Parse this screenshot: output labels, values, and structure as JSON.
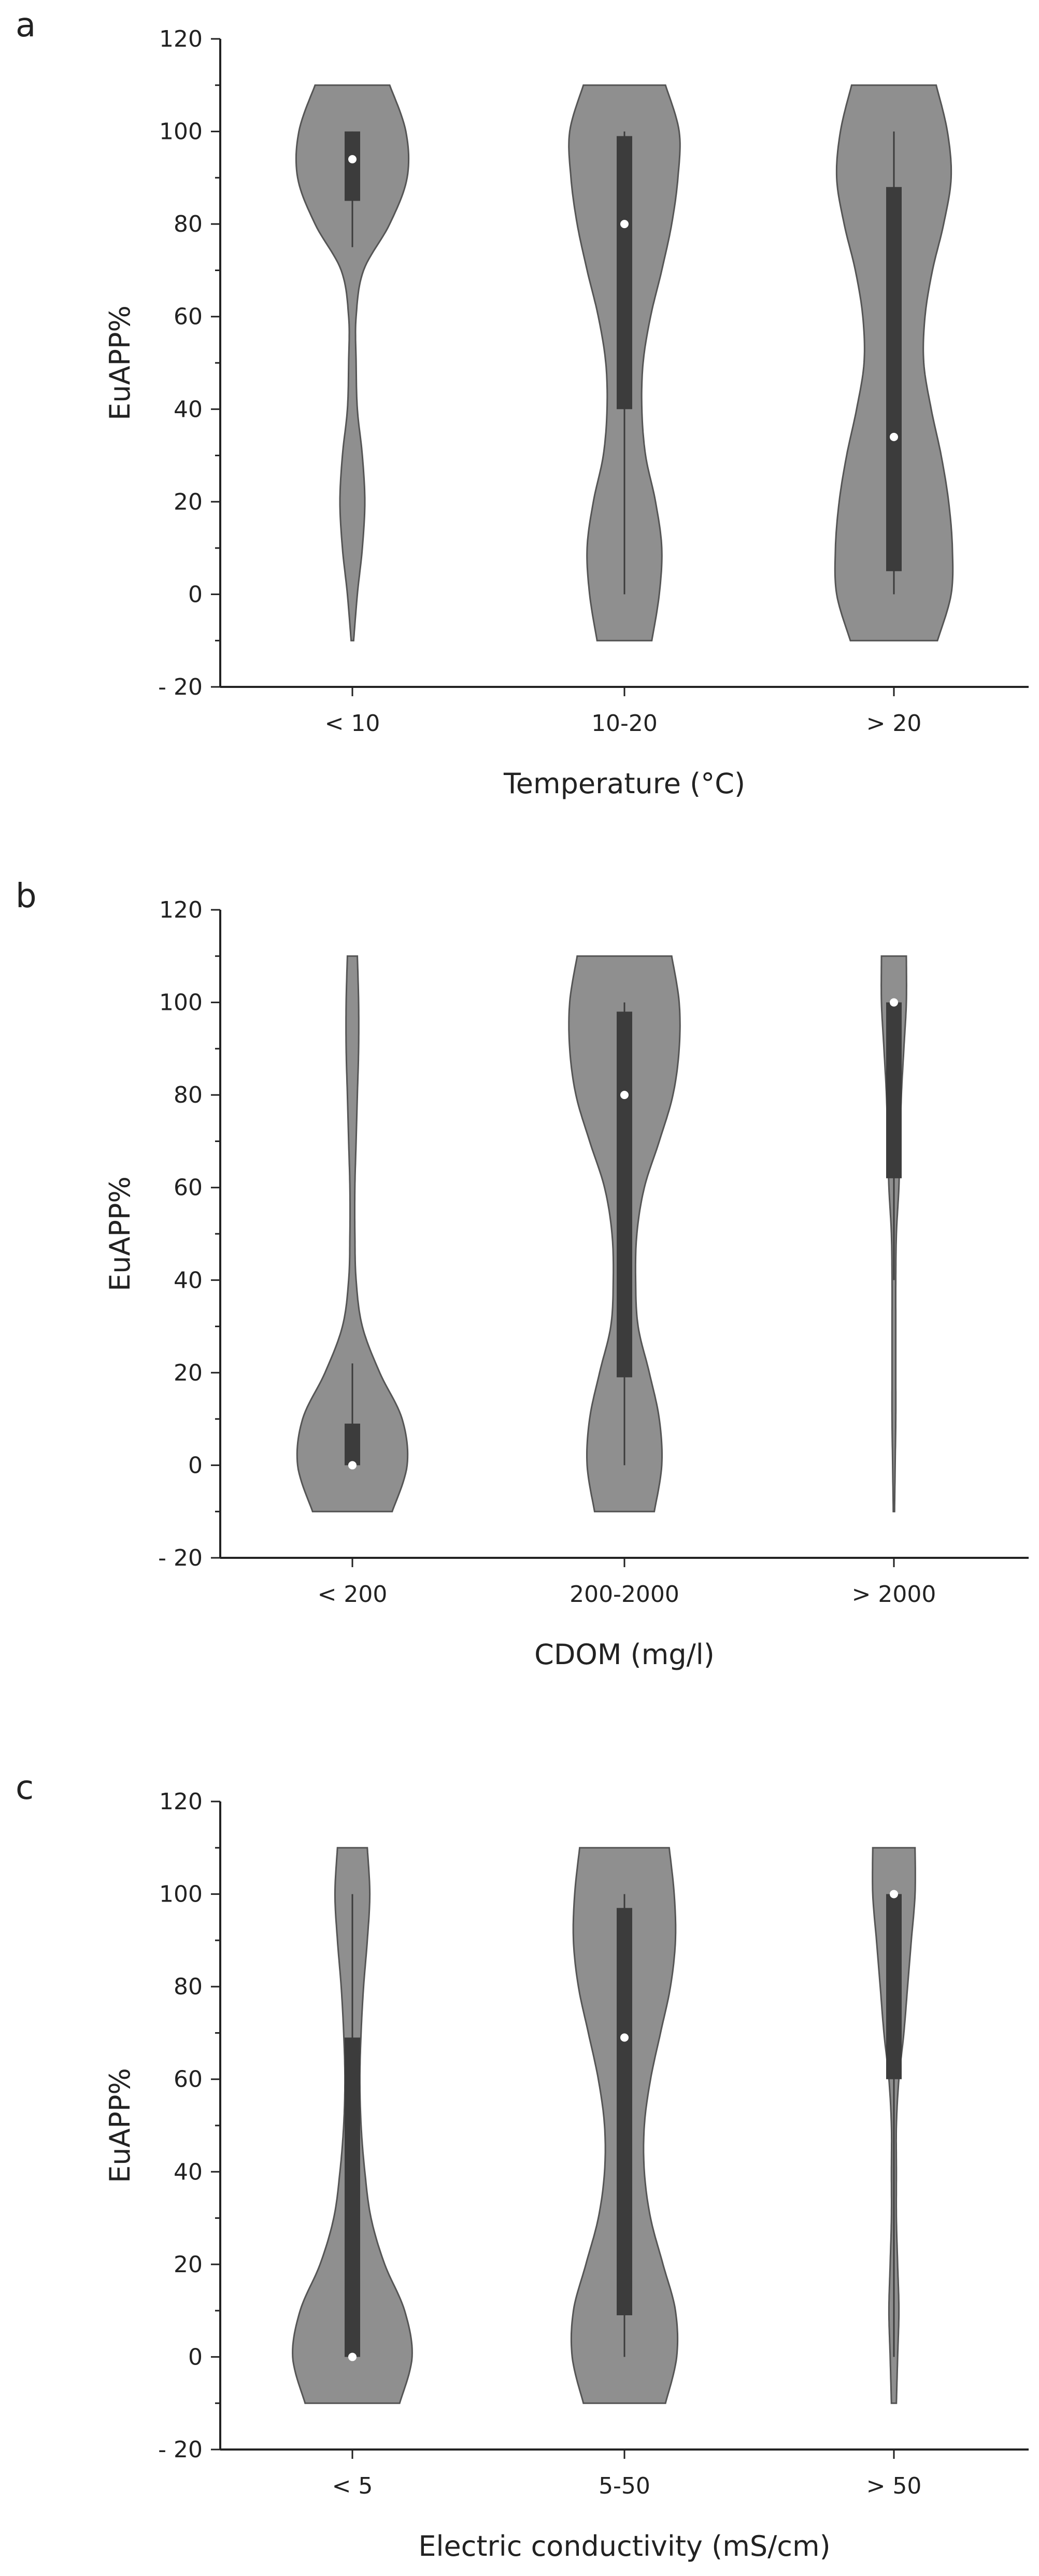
{
  "chart_data": [
    {
      "type": "violin",
      "panel_label": "a",
      "ylabel": "EuAPP%",
      "xlabel": "Temperature (°C)",
      "ylim": [
        -20,
        120
      ],
      "y_ticks": [
        "120",
        "100",
        "80",
        "60",
        "40",
        "20",
        "0",
        "- 20"
      ],
      "categories": [
        "< 10",
        "10-20",
        "> 20"
      ],
      "groups": [
        {
          "category": "< 10",
          "median": 94,
          "q1": 85,
          "q3": 100,
          "whisker_low": 75,
          "whisker_high": 100,
          "density": [
            [
              -10,
              0.01
            ],
            [
              0,
              0.04
            ],
            [
              10,
              0.08
            ],
            [
              20,
              0.1
            ],
            [
              30,
              0.08
            ],
            [
              40,
              0.04
            ],
            [
              50,
              0.03
            ],
            [
              60,
              0.03
            ],
            [
              70,
              0.09
            ],
            [
              80,
              0.3
            ],
            [
              90,
              0.44
            ],
            [
              100,
              0.43
            ],
            [
              110,
              0.3
            ]
          ]
        },
        {
          "category": "10-20",
          "median": 80,
          "q1": 40,
          "q3": 99,
          "whisker_low": 0,
          "whisker_high": 100,
          "density": [
            [
              -10,
              0.22
            ],
            [
              0,
              0.28
            ],
            [
              10,
              0.3
            ],
            [
              20,
              0.25
            ],
            [
              30,
              0.17
            ],
            [
              40,
              0.14
            ],
            [
              50,
              0.15
            ],
            [
              60,
              0.21
            ],
            [
              70,
              0.3
            ],
            [
              80,
              0.38
            ],
            [
              90,
              0.43
            ],
            [
              100,
              0.44
            ],
            [
              110,
              0.33
            ]
          ]
        },
        {
          "category": "> 20",
          "median": 34,
          "q1": 5,
          "q3": 88,
          "whisker_low": 0,
          "whisker_high": 100,
          "density": [
            [
              -10,
              0.35
            ],
            [
              0,
              0.46
            ],
            [
              10,
              0.47
            ],
            [
              20,
              0.44
            ],
            [
              30,
              0.38
            ],
            [
              40,
              0.3
            ],
            [
              50,
              0.24
            ],
            [
              60,
              0.25
            ],
            [
              70,
              0.31
            ],
            [
              80,
              0.4
            ],
            [
              90,
              0.46
            ],
            [
              100,
              0.43
            ],
            [
              110,
              0.34
            ]
          ]
        }
      ]
    },
    {
      "type": "violin",
      "panel_label": "b",
      "ylabel": "EuAPP%",
      "xlabel": "CDOM (mg/l)",
      "ylim": [
        -20,
        120
      ],
      "y_ticks": [
        "120",
        "100",
        "80",
        "60",
        "40",
        "20",
        "0",
        "- 20"
      ],
      "categories": [
        "< 200",
        "200-2000",
        "> 2000"
      ],
      "groups": [
        {
          "category": "< 200",
          "median": 0,
          "q1": 0,
          "q3": 9,
          "whisker_low": 0,
          "whisker_high": 22,
          "density": [
            [
              -10,
              0.32
            ],
            [
              0,
              0.44
            ],
            [
              10,
              0.4
            ],
            [
              20,
              0.22
            ],
            [
              30,
              0.08
            ],
            [
              40,
              0.03
            ],
            [
              50,
              0.02
            ],
            [
              60,
              0.02
            ],
            [
              70,
              0.03
            ],
            [
              80,
              0.04
            ],
            [
              90,
              0.05
            ],
            [
              100,
              0.05
            ],
            [
              110,
              0.04
            ]
          ]
        },
        {
          "category": "200-2000",
          "median": 80,
          "q1": 19,
          "q3": 98,
          "whisker_low": 0,
          "whisker_high": 100,
          "density": [
            [
              -10,
              0.24
            ],
            [
              0,
              0.3
            ],
            [
              10,
              0.28
            ],
            [
              20,
              0.2
            ],
            [
              30,
              0.11
            ],
            [
              40,
              0.09
            ],
            [
              50,
              0.1
            ],
            [
              60,
              0.16
            ],
            [
              70,
              0.28
            ],
            [
              80,
              0.39
            ],
            [
              90,
              0.44
            ],
            [
              100,
              0.44
            ],
            [
              110,
              0.38
            ]
          ]
        },
        {
          "category": "> 2000",
          "median": 100,
          "q1": 62,
          "q3": 100,
          "whisker_low": 40,
          "whisker_high": 100,
          "density": [
            [
              -10,
              0.005
            ],
            [
              0,
              0.01
            ],
            [
              10,
              0.015
            ],
            [
              20,
              0.015
            ],
            [
              30,
              0.015
            ],
            [
              40,
              0.015
            ],
            [
              50,
              0.02
            ],
            [
              60,
              0.04
            ],
            [
              70,
              0.05
            ],
            [
              80,
              0.06
            ],
            [
              90,
              0.08
            ],
            [
              100,
              0.1
            ],
            [
              110,
              0.1
            ]
          ]
        }
      ]
    },
    {
      "type": "violin",
      "panel_label": "c",
      "ylabel": "EuAPP%",
      "xlabel": "Electric conductivity (mS/cm)",
      "ylim": [
        -20,
        120
      ],
      "y_ticks": [
        "120",
        "100",
        "80",
        "60",
        "40",
        "20",
        "0",
        "- 20"
      ],
      "categories": [
        "< 5",
        "5-50",
        "> 50"
      ],
      "groups": [
        {
          "category": "< 5",
          "median": 0,
          "q1": 0,
          "q3": 69,
          "whisker_low": 0,
          "whisker_high": 100,
          "density": [
            [
              -10,
              0.38
            ],
            [
              0,
              0.48
            ],
            [
              10,
              0.42
            ],
            [
              20,
              0.26
            ],
            [
              30,
              0.15
            ],
            [
              40,
              0.1
            ],
            [
              50,
              0.07
            ],
            [
              60,
              0.06
            ],
            [
              70,
              0.07
            ],
            [
              80,
              0.09
            ],
            [
              90,
              0.12
            ],
            [
              100,
              0.14
            ],
            [
              110,
              0.12
            ]
          ]
        },
        {
          "category": "5-50",
          "median": 69,
          "q1": 9,
          "q3": 97,
          "whisker_low": 0,
          "whisker_high": 100,
          "density": [
            [
              -10,
              0.33
            ],
            [
              0,
              0.42
            ],
            [
              10,
              0.41
            ],
            [
              20,
              0.31
            ],
            [
              30,
              0.21
            ],
            [
              40,
              0.16
            ],
            [
              50,
              0.16
            ],
            [
              60,
              0.21
            ],
            [
              70,
              0.29
            ],
            [
              80,
              0.37
            ],
            [
              90,
              0.41
            ],
            [
              100,
              0.4
            ],
            [
              110,
              0.36
            ]
          ]
        },
        {
          "category": "> 50",
          "median": 100,
          "q1": 60,
          "q3": 100,
          "whisker_low": 0,
          "whisker_high": 100,
          "density": [
            [
              -10,
              0.02
            ],
            [
              0,
              0.03
            ],
            [
              10,
              0.04
            ],
            [
              20,
              0.03
            ],
            [
              30,
              0.02
            ],
            [
              40,
              0.02
            ],
            [
              50,
              0.02
            ],
            [
              60,
              0.04
            ],
            [
              70,
              0.08
            ],
            [
              80,
              0.11
            ],
            [
              90,
              0.14
            ],
            [
              100,
              0.17
            ],
            [
              110,
              0.17
            ]
          ]
        }
      ]
    }
  ],
  "colors": {
    "violin_fill": "#8f8f8f",
    "violin_edge": "#555555",
    "box_fill": "#3c3c3c",
    "whisker": "#3c3c3c",
    "median_marker": "#ffffff",
    "axis": "#222222",
    "text": "#222222"
  }
}
